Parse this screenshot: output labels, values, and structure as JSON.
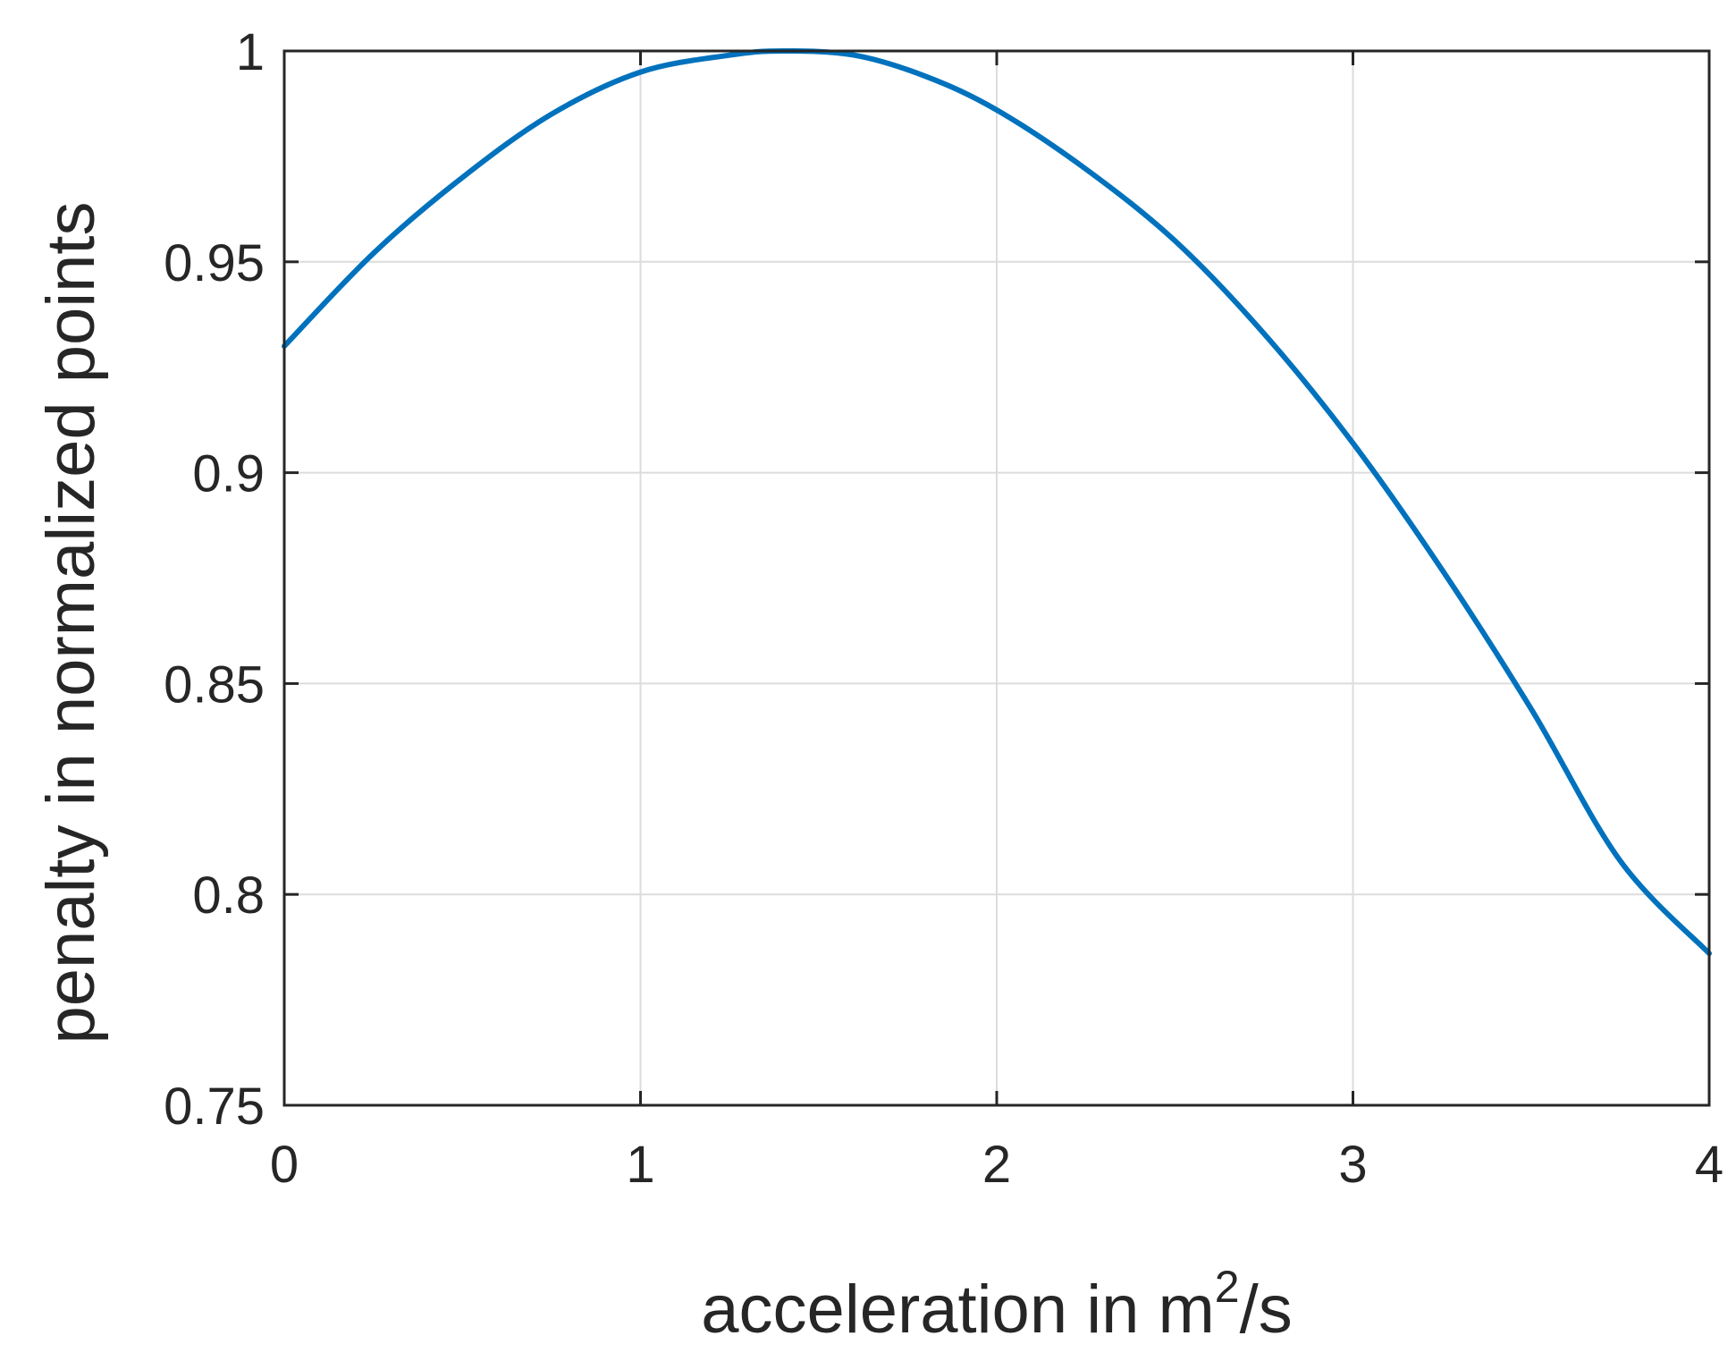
{
  "chart_data": {
    "type": "line",
    "xlabel": "acceleration in m",
    "xlabel_superscript": "2",
    "xlabel_suffix": "/s",
    "ylabel": "penalty in normalized points",
    "xlim": [
      0,
      4
    ],
    "ylim": [
      0.75,
      1
    ],
    "xticks": [
      0,
      1,
      2,
      3,
      4
    ],
    "xtick_labels": [
      "0",
      "1",
      "2",
      "3",
      "4"
    ],
    "yticks": [
      0.75,
      0.8,
      0.85,
      0.9,
      0.95,
      1
    ],
    "ytick_labels": [
      "0.75",
      "0.8",
      "0.85",
      "0.9",
      "0.95",
      "1"
    ],
    "grid": true,
    "series": [
      {
        "color": "#0072bd",
        "x": [
          0,
          0.25,
          0.5,
          0.75,
          1.0,
          1.25,
          1.4,
          1.6,
          1.8,
          2.0,
          2.25,
          2.5,
          2.75,
          3.0,
          3.25,
          3.5,
          3.75,
          4.0
        ],
        "y": [
          0.93,
          0.952,
          0.97,
          0.985,
          0.995,
          0.999,
          1.0,
          0.999,
          0.994,
          0.986,
          0.972,
          0.955,
          0.933,
          0.907,
          0.877,
          0.844,
          0.808,
          0.786
        ]
      }
    ]
  },
  "colors": {
    "line": "#0072bd",
    "grid": "#dcdcdc",
    "axes": "#262626"
  }
}
